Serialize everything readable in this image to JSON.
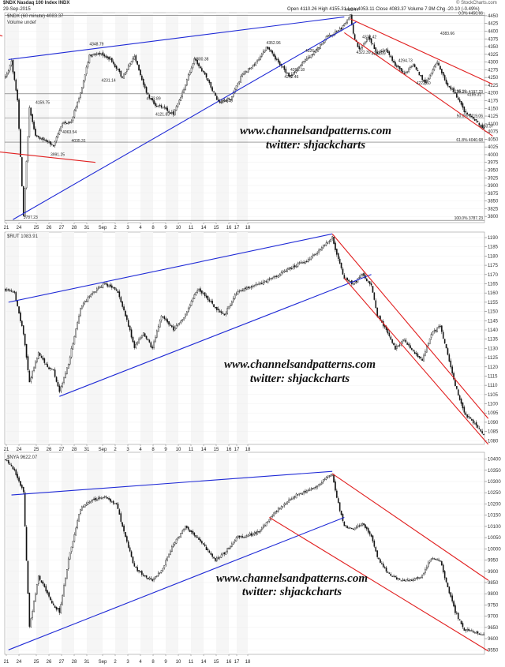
{
  "header": {
    "title": "$NDX Nasdaq 100 Index INDX",
    "date": "29-Sep-2015",
    "quote": "Open 4110.26   High 4155.31   Low 4053.11   Close 4083.37   Volume 7.9M   Chg -20.10 (-0.49%)",
    "credit": "© StockCharts.com",
    "legend_ndx": "$NDX (60 minute) 4083.37",
    "legend_vol": "Volume undef",
    "legend_rut": "$RUT 1083.91",
    "legend_nya": "$NYA 9622.07"
  },
  "watermark": {
    "line1": "www.channelsandpatterns.com",
    "line2": "twitter: shjackcharts"
  },
  "chart_data": [
    {
      "type": "candlestick",
      "title": "$NDX (60 minute) 4083.37",
      "ylim": [
        3780,
        4460
      ],
      "y_ticks": [
        3800,
        3825,
        3850,
        3875,
        3900,
        3925,
        3950,
        3975,
        4000,
        4025,
        4050,
        4075,
        4100,
        4125,
        4150,
        4175,
        4200,
        4225,
        4250,
        4275,
        4300,
        4325,
        4350,
        4375,
        4400,
        4425,
        4450
      ],
      "fib_levels": [
        {
          "label": "0.0% 4450.66",
          "value": 4450.66
        },
        {
          "label": "38.2% 4197.23",
          "value": 4197.23
        },
        {
          "label": "50.0% 4119.06",
          "value": 4119.06
        },
        {
          "label": "61.8% 4040.68",
          "value": 4040.68
        },
        {
          "label": "100.0% 3787.23",
          "value": 3787.23
        }
      ],
      "annotations": [
        {
          "text": "3787.23",
          "value": 3787.23
        },
        {
          "text": "4159.75",
          "value": 4159.75
        },
        {
          "text": "3991.25",
          "value": 3991.25
        },
        {
          "text": "4035.31",
          "value": 4035.31
        },
        {
          "text": "4063.54",
          "value": 4063.54
        },
        {
          "text": "4348.79",
          "value": 4348.79
        },
        {
          "text": "4231.14",
          "value": 4231.14
        },
        {
          "text": "4172.89",
          "value": 4172.89
        },
        {
          "text": "4121.83",
          "value": 4121.83
        },
        {
          "text": "4300.38",
          "value": 4300.38
        },
        {
          "text": "4164.40",
          "value": 4164.4
        },
        {
          "text": "4352.96",
          "value": 4352.96
        },
        {
          "text": "4242.46",
          "value": 4242.46
        },
        {
          "text": "4326.77",
          "value": 4326.77
        },
        {
          "text": "4266.18",
          "value": 4266.18
        },
        {
          "text": "4460.44",
          "value": 4460.44
        },
        {
          "text": "4372.42",
          "value": 4372.42
        },
        {
          "text": "4322.39",
          "value": 4322.39
        },
        {
          "text": "4317.69",
          "value": 4317.69
        },
        {
          "text": "4294.73",
          "value": 4294.73
        },
        {
          "text": "4222.60",
          "value": 4222.6
        },
        {
          "text": "4383.66",
          "value": 4383.66
        },
        {
          "text": "4195.11",
          "value": 4195.11
        },
        {
          "text": "4185.31",
          "value": 4185.31
        },
        {
          "text": "4083.37",
          "value": 4083.37
        }
      ],
      "x_labels": [
        "21",
        "24",
        "25",
        "26",
        "27",
        "28",
        "31",
        "Sep",
        "2",
        "3",
        "4",
        "8",
        "9",
        "10",
        "11",
        "14",
        "15",
        "16",
        "17",
        "18",
        "21",
        "22",
        "23",
        "24",
        "25",
        "28",
        "29"
      ],
      "wave": [
        [
          0,
          4250
        ],
        [
          4,
          4300
        ],
        [
          8,
          4180
        ],
        [
          12,
          3800
        ],
        [
          16,
          4150
        ],
        [
          20,
          4060
        ],
        [
          26,
          4050
        ],
        [
          32,
          4030
        ],
        [
          38,
          4100
        ],
        [
          44,
          4110
        ],
        [
          50,
          4200
        ],
        [
          56,
          4320
        ],
        [
          62,
          4330
        ],
        [
          70,
          4310
        ],
        [
          78,
          4250
        ],
        [
          86,
          4320
        ],
        [
          94,
          4200
        ],
        [
          100,
          4160
        ],
        [
          106,
          4150
        ],
        [
          112,
          4130
        ],
        [
          118,
          4200
        ],
        [
          126,
          4310
        ],
        [
          134,
          4250
        ],
        [
          142,
          4170
        ],
        [
          150,
          4180
        ],
        [
          158,
          4260
        ],
        [
          166,
          4290
        ],
        [
          174,
          4350
        ],
        [
          182,
          4300
        ],
        [
          190,
          4250
        ],
        [
          198,
          4300
        ],
        [
          206,
          4330
        ],
        [
          214,
          4380
        ],
        [
          222,
          4400
        ],
        [
          226,
          4420
        ],
        [
          230,
          4450
        ],
        [
          232,
          4390
        ],
        [
          236,
          4340
        ],
        [
          242,
          4380
        ],
        [
          248,
          4330
        ],
        [
          254,
          4340
        ],
        [
          260,
          4290
        ],
        [
          266,
          4260
        ],
        [
          272,
          4290
        ],
        [
          280,
          4230
        ],
        [
          288,
          4300
        ],
        [
          294,
          4230
        ],
        [
          300,
          4200
        ],
        [
          306,
          4140
        ],
        [
          312,
          4120
        ],
        [
          318,
          4085
        ]
      ],
      "lines": [
        {
          "color": "#1f2ad6",
          "from": [
            2,
            4308
          ],
          "to": [
            226,
            4446
          ]
        },
        {
          "color": "#1f2ad6",
          "from": [
            5,
            3790
          ],
          "to": [
            234,
            4430
          ]
        },
        {
          "color": "#e12020",
          "from": [
            -6,
            4010
          ],
          "to": [
            60,
            3975
          ]
        },
        {
          "color": "#e12020",
          "from": [
            -6,
            4390
          ],
          "to": [
            -2,
            4384
          ]
        },
        {
          "color": "#e12020",
          "from": [
            230,
            4440
          ],
          "to": [
            325,
            4228
          ]
        },
        {
          "color": "#e12020",
          "from": [
            226,
            4395
          ],
          "to": [
            325,
            4060
          ]
        }
      ]
    },
    {
      "type": "candlestick",
      "title": "$RUT 1083.91",
      "ylim": [
        1078,
        1193
      ],
      "y_ticks": [
        1080,
        1085,
        1090,
        1095,
        1100,
        1105,
        1110,
        1115,
        1120,
        1125,
        1130,
        1135,
        1140,
        1145,
        1150,
        1155,
        1160,
        1165,
        1170,
        1175,
        1180,
        1185,
        1190
      ],
      "x_labels": [
        "21",
        "24",
        "25",
        "26",
        "27",
        "28",
        "31",
        "Sep",
        "2",
        "3",
        "4",
        "8",
        "9",
        "10",
        "11",
        "14",
        "15",
        "16",
        "17",
        "18",
        "21",
        "22",
        "23",
        "24",
        "25",
        "28",
        "29"
      ],
      "wave": [
        [
          0,
          1162
        ],
        [
          6,
          1160
        ],
        [
          12,
          1138
        ],
        [
          16,
          1112
        ],
        [
          22,
          1128
        ],
        [
          28,
          1120
        ],
        [
          32,
          1118
        ],
        [
          36,
          1106
        ],
        [
          42,
          1122
        ],
        [
          50,
          1152
        ],
        [
          58,
          1160
        ],
        [
          66,
          1165
        ],
        [
          74,
          1162
        ],
        [
          80,
          1148
        ],
        [
          86,
          1131
        ],
        [
          92,
          1138
        ],
        [
          98,
          1130
        ],
        [
          104,
          1148
        ],
        [
          112,
          1140
        ],
        [
          120,
          1148
        ],
        [
          128,
          1162
        ],
        [
          134,
          1158
        ],
        [
          140,
          1152
        ],
        [
          146,
          1148
        ],
        [
          154,
          1160
        ],
        [
          162,
          1163
        ],
        [
          170,
          1165
        ],
        [
          178,
          1168
        ],
        [
          186,
          1172
        ],
        [
          194,
          1175
        ],
        [
          202,
          1178
        ],
        [
          208,
          1182
        ],
        [
          214,
          1187
        ],
        [
          218,
          1190
        ],
        [
          222,
          1178
        ],
        [
          226,
          1168
        ],
        [
          232,
          1165
        ],
        [
          238,
          1170
        ],
        [
          244,
          1164
        ],
        [
          248,
          1148
        ],
        [
          254,
          1140
        ],
        [
          260,
          1130
        ],
        [
          266,
          1135
        ],
        [
          272,
          1128
        ],
        [
          278,
          1124
        ],
        [
          284,
          1138
        ],
        [
          290,
          1142
        ],
        [
          294,
          1130
        ],
        [
          300,
          1110
        ],
        [
          306,
          1095
        ],
        [
          312,
          1090
        ],
        [
          318,
          1084
        ]
      ],
      "lines": [
        {
          "color": "#1f2ad6",
          "from": [
            2,
            1155
          ],
          "to": [
            218,
            1192
          ]
        },
        {
          "color": "#1f2ad6",
          "from": [
            36,
            1104
          ],
          "to": [
            244,
            1170
          ]
        },
        {
          "color": "#e12020",
          "from": [
            218,
            1192
          ],
          "to": [
            322,
            1092
          ]
        },
        {
          "color": "#e12020",
          "from": [
            226,
            1168
          ],
          "to": [
            322,
            1078
          ]
        }
      ]
    },
    {
      "type": "candlestick",
      "title": "$NYA 9622.07",
      "ylim": [
        9530,
        10430
      ],
      "y_ticks": [
        9550,
        9600,
        9650,
        9700,
        9750,
        9800,
        9850,
        9900,
        9950,
        10000,
        10050,
        10100,
        10150,
        10200,
        10250,
        10300,
        10350,
        10400
      ],
      "x_labels": [
        "21",
        "24",
        "25",
        "26",
        "27",
        "28",
        "31",
        "Sep",
        "2",
        "3",
        "4",
        "8",
        "9",
        "10",
        "11",
        "14",
        "15",
        "16",
        "17",
        "18",
        "21",
        "22",
        "23",
        "24",
        "25",
        "28",
        "29"
      ],
      "wave": [
        [
          0,
          10400
        ],
        [
          6,
          10350
        ],
        [
          12,
          10250
        ],
        [
          16,
          9650
        ],
        [
          22,
          9880
        ],
        [
          28,
          9800
        ],
        [
          32,
          9750
        ],
        [
          36,
          9720
        ],
        [
          42,
          9950
        ],
        [
          50,
          10180
        ],
        [
          58,
          10220
        ],
        [
          66,
          10230
        ],
        [
          74,
          10200
        ],
        [
          80,
          10050
        ],
        [
          86,
          9920
        ],
        [
          92,
          9880
        ],
        [
          98,
          9860
        ],
        [
          104,
          9900
        ],
        [
          112,
          10020
        ],
        [
          120,
          10100
        ],
        [
          128,
          10050
        ],
        [
          134,
          10000
        ],
        [
          140,
          9950
        ],
        [
          146,
          9980
        ],
        [
          154,
          10050
        ],
        [
          162,
          10060
        ],
        [
          170,
          10080
        ],
        [
          178,
          10150
        ],
        [
          186,
          10200
        ],
        [
          194,
          10240
        ],
        [
          202,
          10260
        ],
        [
          208,
          10280
        ],
        [
          214,
          10320
        ],
        [
          218,
          10330
        ],
        [
          222,
          10200
        ],
        [
          226,
          10100
        ],
        [
          232,
          10090
        ],
        [
          238,
          10110
        ],
        [
          244,
          10060
        ],
        [
          248,
          9960
        ],
        [
          254,
          9900
        ],
        [
          260,
          9870
        ],
        [
          266,
          9860
        ],
        [
          272,
          9860
        ],
        [
          278,
          9880
        ],
        [
          284,
          9960
        ],
        [
          290,
          9950
        ],
        [
          294,
          9850
        ],
        [
          300,
          9720
        ],
        [
          306,
          9640
        ],
        [
          312,
          9630
        ],
        [
          318,
          9620
        ]
      ],
      "lines": [
        {
          "color": "#1f2ad6",
          "from": [
            4,
            10240
          ],
          "to": [
            218,
            10345
          ]
        },
        {
          "color": "#1f2ad6",
          "from": [
            2,
            9550
          ],
          "to": [
            226,
            10140
          ]
        },
        {
          "color": "#e12020",
          "from": [
            218,
            10335
          ],
          "to": [
            322,
            9860
          ]
        },
        {
          "color": "#e12020",
          "from": [
            176,
            10140
          ],
          "to": [
            322,
            9545
          ]
        }
      ]
    }
  ]
}
